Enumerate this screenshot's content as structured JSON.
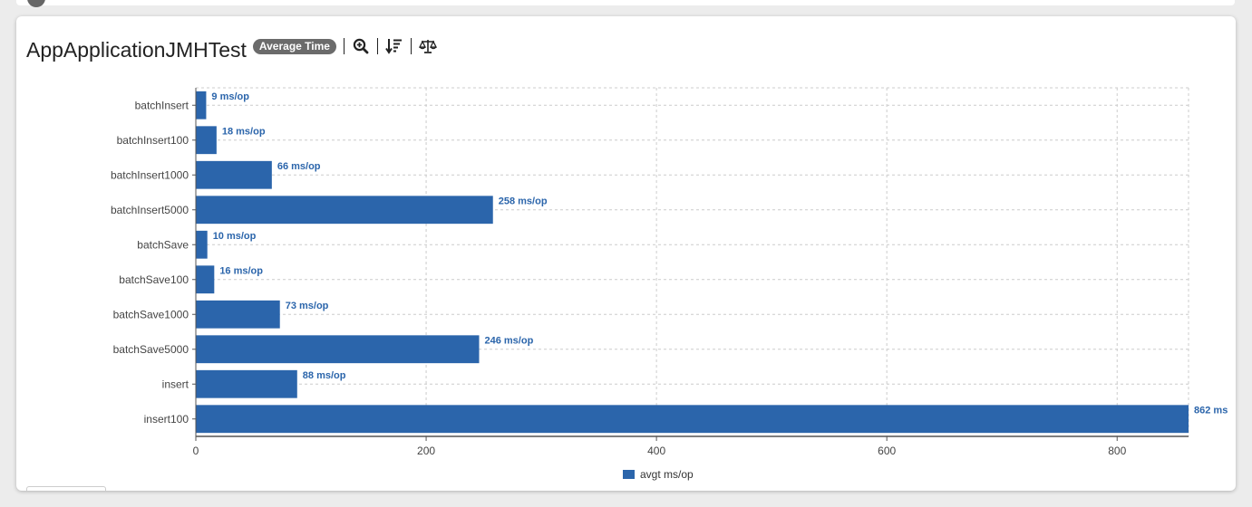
{
  "header": {
    "title": "AppApplicationJMHTest",
    "mode_badge": "Average Time",
    "tools": [
      "zoom-in-icon",
      "sort-descending-icon",
      "balance-scale-icon"
    ]
  },
  "colors": {
    "bar": "#2b65ab",
    "label": "#2b65ab",
    "badge": "#6b6b6b",
    "grid": "#cccccc",
    "axis_text": "#444444"
  },
  "chart_data": {
    "type": "bar",
    "orientation": "horizontal",
    "title": "",
    "xlabel": "",
    "ylabel": "",
    "categories": [
      "batchInsert",
      "batchInsert100",
      "batchInsert1000",
      "batchInsert5000",
      "batchSave",
      "batchSave100",
      "batchSave1000",
      "batchSave5000",
      "insert",
      "insert100"
    ],
    "series": [
      {
        "name": "avgt ms/op",
        "values": [
          9,
          18,
          66,
          258,
          10,
          16,
          73,
          246,
          88,
          862
        ],
        "labels": [
          "9 ms/op",
          "18 ms/op",
          "66 ms/op",
          "258 ms/op",
          "10 ms/op",
          "16 ms/op",
          "73 ms/op",
          "246 ms/op",
          "88 ms/op",
          "862 ms"
        ]
      }
    ],
    "xlim": [
      0,
      862
    ],
    "x_ticks": [
      0,
      200,
      400,
      600,
      800
    ],
    "grid": true,
    "legend_position": "bottom-center"
  }
}
